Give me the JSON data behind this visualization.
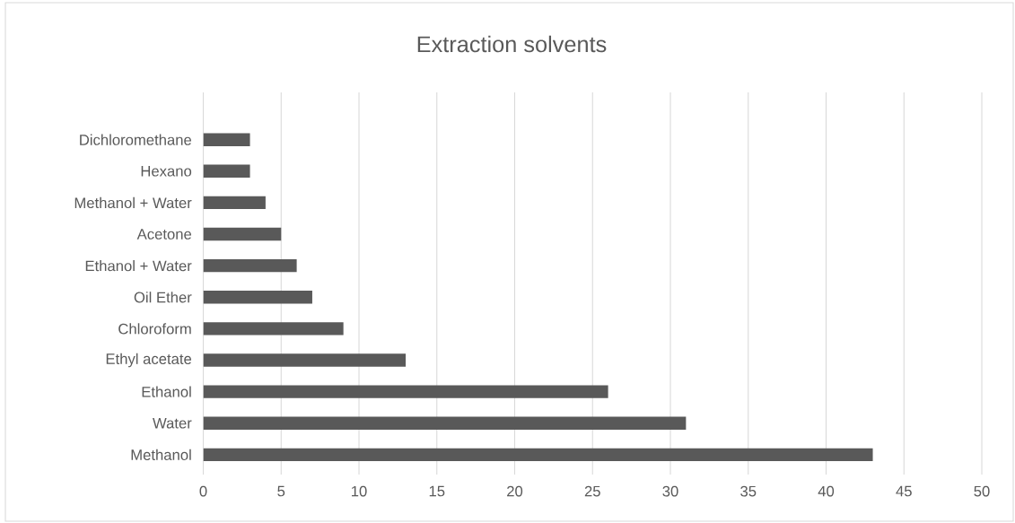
{
  "chart_data": {
    "type": "bar",
    "title": "Extraction solvents",
    "orientation": "horizontal",
    "categories": [
      "Dichloromethane",
      "Hexano",
      "Methanol + Water",
      "Acetone",
      "Ethanol + Water",
      "Oil Ether",
      "Chloroform",
      "Ethyl acetate",
      "Ethanol",
      "Water",
      "Methanol"
    ],
    "values": [
      3,
      3,
      4,
      5,
      6,
      7,
      9,
      13,
      26,
      31,
      43
    ],
    "color": "#595959",
    "xlim": [
      0,
      50
    ],
    "xticks": [
      0,
      5,
      10,
      15,
      20,
      25,
      30,
      35,
      40,
      45,
      50
    ],
    "grid": "x"
  }
}
